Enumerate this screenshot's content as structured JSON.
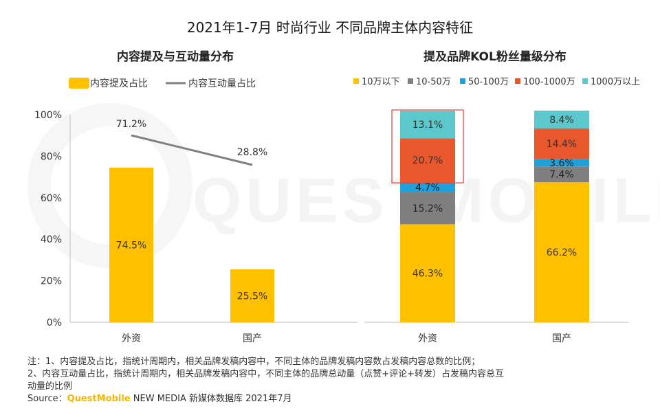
{
  "title": "2021年1-7月 时尚行业 不同品牌主体内容特征",
  "colors": {
    "yellow": "#FFC000",
    "gray": "#7F7F7F",
    "blue": "#1FA0D8",
    "red": "#E8582C",
    "cyan": "#5CC8CC",
    "line": "#808080",
    "highlight": "#E53935"
  },
  "watermark": "QUESTMOBILE",
  "chart_data": [
    {
      "type": "bar",
      "title": "内容提及与互动量分布",
      "categories": [
        "外资",
        "国产"
      ],
      "series": [
        {
          "name": "内容提及占比",
          "kind": "bar",
          "values": [
            74.5,
            25.5
          ],
          "labels": [
            "74.5%",
            "25.5%"
          ]
        },
        {
          "name": "内容互动量占比",
          "kind": "line",
          "values": [
            71.2,
            28.8
          ],
          "labels": [
            "71.2%",
            "28.8%"
          ]
        }
      ],
      "yticks": [
        "100%",
        "80%",
        "60%",
        "40%",
        "20%",
        "0%"
      ],
      "ylim": [
        0,
        100
      ],
      "xlabel": "",
      "ylabel": "",
      "legend": "top-left"
    },
    {
      "type": "bar",
      "stacked": true,
      "title": "提及品牌KOL粉丝量级分布",
      "categories": [
        "外资",
        "国产"
      ],
      "series": [
        {
          "name": "10万以下",
          "values": [
            46.3,
            66.2
          ],
          "labels": [
            "46.3%",
            "66.2%"
          ]
        },
        {
          "name": "10-50万",
          "values": [
            15.2,
            7.4
          ],
          "labels": [
            "15.2%",
            "7.4%"
          ]
        },
        {
          "name": "50-100万",
          "values": [
            4.7,
            3.6
          ],
          "labels": [
            "4.7%",
            "3.6%"
          ]
        },
        {
          "name": "100-1000万",
          "values": [
            20.7,
            14.4
          ],
          "labels": [
            "20.7%",
            "14.4%"
          ]
        },
        {
          "name": "1000万以上",
          "values": [
            13.1,
            8.4
          ],
          "labels": [
            "13.1%",
            "8.4%"
          ]
        }
      ],
      "ylim": [
        0,
        100
      ],
      "legend": "top",
      "highlight": {
        "category": "外资",
        "series": [
          "100-1000万",
          "1000万以上"
        ]
      }
    }
  ],
  "notes": {
    "line1": "注：1、内容提及占比，指统计周期内，相关品牌发稿内容中，不同主体的品牌发稿内容数占发稿内容总数的比例；",
    "line2": "2、内容互动量占比，指统计周期内，相关品牌发稿内容中，不同主体的品牌总动量（点赞+评论+转发）占发稿内容总互",
    "line3": "动量的比例",
    "source_prefix": "Source：",
    "source_brand": "QuestMobile",
    "source_suffix": " NEW MEDIA 新媒体数据库 2021年7月"
  }
}
